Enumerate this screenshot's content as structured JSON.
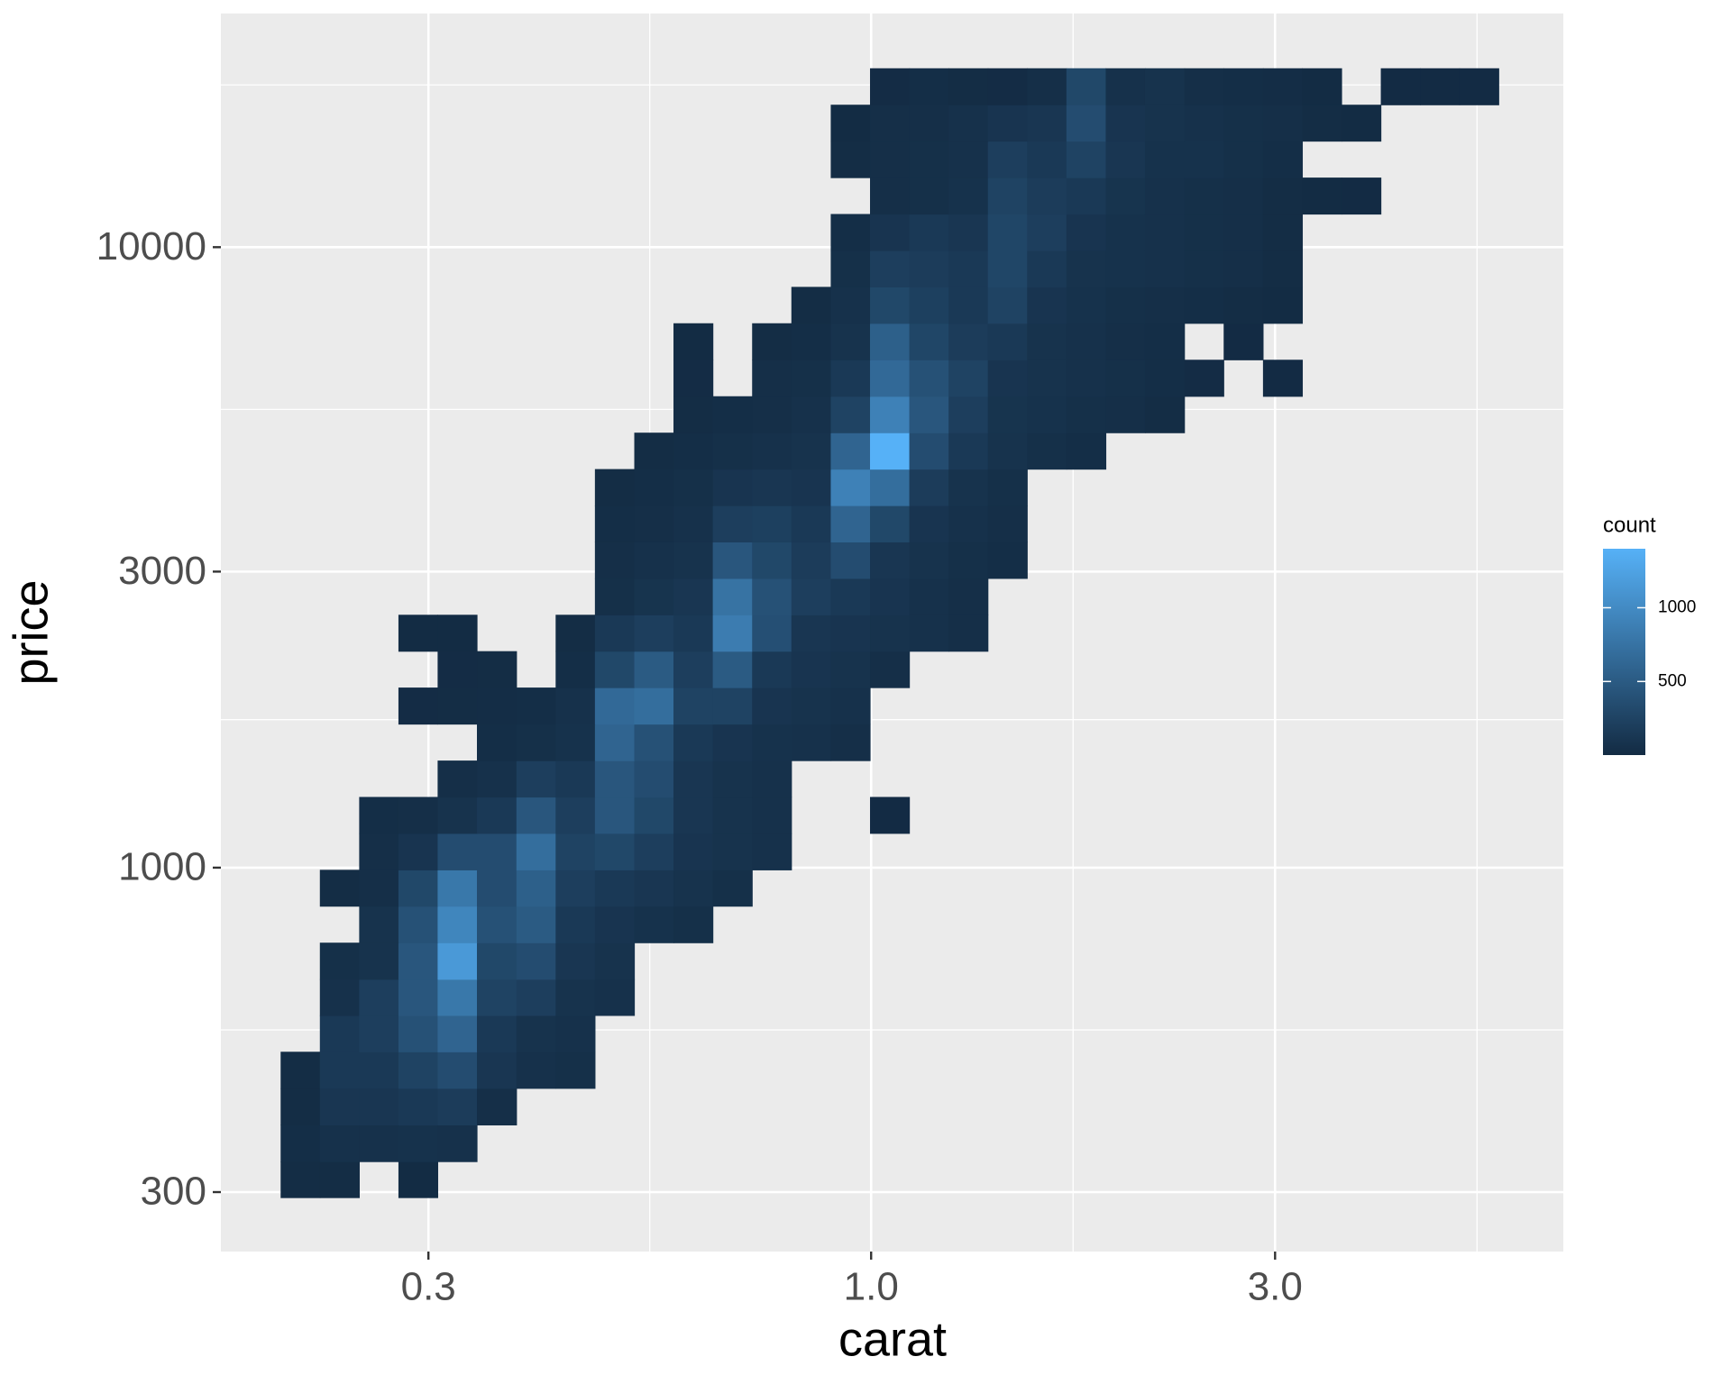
{
  "chart_data": {
    "type": "heatmap",
    "x_label": "carat",
    "y_label": "price",
    "legend_title": "count",
    "log_x": true,
    "log_y": true,
    "grid": true,
    "xlim": [
      0.1706,
      6.57
    ],
    "ylim": [
      240.6,
      23800
    ],
    "xticks": [
      0.3,
      {
        "value": 1,
        "label": "1.0"
      },
      {
        "value": 3,
        "label": "3.0"
      }
    ],
    "yticks": [
      300,
      1000,
      3000,
      10000
    ],
    "clim": [
      1,
      1400
    ],
    "cticks": [
      500,
      1000
    ],
    "low_color": "#132B43",
    "high_color": "#56B1F7",
    "legend_position": "right",
    "x_bins": [
      0.2007,
      0.2233,
      0.2485,
      0.2765,
      0.3076,
      0.3423,
      0.3811,
      0.424,
      0.4718,
      0.5251,
      0.5842,
      0.6501,
      0.7235,
      0.805,
      0.896,
      0.997,
      1.1094,
      1.2345,
      1.3736,
      1.5285,
      1.7008,
      1.8928,
      2.1059,
      2.3442,
      2.6085,
      2.903,
      3.23,
      3.594,
      3.9994,
      4.4505,
      4.952,
      5.5105
    ],
    "y_bins": [
      294,
      336,
      385,
      441,
      505,
      578,
      661,
      757,
      867,
      992,
      1136,
      1300,
      1488,
      1704,
      1951,
      2233,
      2556,
      2926,
      3350,
      3834,
      4389,
      5024,
      5751,
      6585,
      7540,
      8630,
      9878,
      11310,
      12947,
      14825,
      16966,
      19424
    ],
    "values": [
      [
        20,
        20,
        null,
        10,
        null,
        null,
        null,
        null,
        null,
        null,
        null,
        null,
        null,
        null,
        null,
        null,
        null,
        null,
        null,
        null,
        null,
        null,
        null,
        null,
        null,
        null,
        null,
        null,
        null,
        null,
        null
      ],
      [
        30,
        60,
        60,
        70,
        60,
        null,
        null,
        null,
        null,
        null,
        null,
        null,
        null,
        null,
        null,
        null,
        null,
        null,
        null,
        null,
        null,
        null,
        null,
        null,
        null,
        null,
        null,
        null,
        null,
        null,
        null
      ],
      [
        20,
        120,
        120,
        150,
        180,
        40,
        null,
        null,
        null,
        null,
        null,
        null,
        null,
        null,
        null,
        null,
        null,
        null,
        null,
        null,
        null,
        null,
        null,
        null,
        null,
        null,
        null,
        null,
        null,
        null,
        null
      ],
      [
        20,
        150,
        150,
        250,
        350,
        120,
        60,
        50,
        null,
        null,
        null,
        null,
        null,
        null,
        null,
        null,
        null,
        null,
        null,
        null,
        null,
        null,
        null,
        null,
        null,
        null,
        null,
        null,
        null,
        null,
        null
      ],
      [
        null,
        150,
        200,
        400,
        600,
        150,
        80,
        60,
        null,
        null,
        null,
        null,
        null,
        null,
        null,
        null,
        null,
        null,
        null,
        null,
        null,
        null,
        null,
        null,
        null,
        null,
        null,
        null,
        null,
        null,
        null
      ],
      [
        null,
        60,
        200,
        450,
        800,
        250,
        200,
        80,
        60,
        null,
        null,
        null,
        null,
        null,
        null,
        null,
        null,
        null,
        null,
        null,
        null,
        null,
        null,
        null,
        null,
        null,
        null,
        null,
        null,
        null,
        null
      ],
      [
        null,
        50,
        80,
        450,
        1150,
        300,
        350,
        120,
        80,
        null,
        null,
        null,
        null,
        null,
        null,
        null,
        null,
        null,
        null,
        null,
        null,
        null,
        null,
        null,
        null,
        null,
        null,
        null,
        null,
        null,
        null
      ],
      [
        null,
        null,
        80,
        400,
        950,
        400,
        500,
        150,
        100,
        70,
        50,
        null,
        null,
        null,
        null,
        null,
        null,
        null,
        null,
        null,
        null,
        null,
        null,
        null,
        null,
        null,
        null,
        null,
        null,
        null,
        null
      ],
      [
        null,
        20,
        40,
        300,
        800,
        350,
        550,
        200,
        150,
        120,
        80,
        50,
        null,
        null,
        null,
        null,
        null,
        null,
        null,
        null,
        null,
        null,
        null,
        null,
        null,
        null,
        null,
        null,
        null,
        null,
        null
      ],
      [
        null,
        null,
        40,
        100,
        350,
        350,
        700,
        250,
        300,
        200,
        100,
        80,
        60,
        null,
        null,
        null,
        null,
        null,
        null,
        null,
        null,
        null,
        null,
        null,
        null,
        null,
        null,
        null,
        null,
        null,
        null
      ],
      [
        null,
        null,
        30,
        40,
        80,
        150,
        450,
        200,
        450,
        300,
        120,
        80,
        60,
        null,
        null,
        5,
        null,
        null,
        null,
        null,
        null,
        null,
        null,
        null,
        null,
        null,
        null,
        null,
        null,
        null,
        null
      ],
      [
        null,
        null,
        null,
        null,
        40,
        60,
        200,
        150,
        450,
        350,
        120,
        80,
        60,
        null,
        null,
        null,
        null,
        null,
        null,
        null,
        null,
        null,
        null,
        null,
        null,
        null,
        null,
        null,
        null,
        null,
        null
      ],
      [
        null,
        null,
        null,
        null,
        null,
        30,
        50,
        70,
        600,
        400,
        150,
        100,
        70,
        60,
        40,
        null,
        null,
        null,
        null,
        null,
        null,
        null,
        null,
        null,
        null,
        null,
        null,
        null,
        null,
        null,
        null
      ],
      [
        null,
        null,
        null,
        15,
        20,
        25,
        30,
        60,
        650,
        700,
        250,
        250,
        100,
        80,
        60,
        null,
        null,
        null,
        null,
        null,
        null,
        null,
        null,
        null,
        null,
        null,
        null,
        null,
        null,
        null,
        null
      ],
      [
        null,
        null,
        null,
        null,
        15,
        20,
        null,
        30,
        300,
        500,
        200,
        500,
        150,
        100,
        80,
        40,
        null,
        null,
        null,
        null,
        null,
        null,
        null,
        null,
        null,
        null,
        null,
        null,
        null,
        null,
        null
      ],
      [
        null,
        null,
        null,
        10,
        10,
        null,
        null,
        20,
        150,
        200,
        150,
        850,
        380,
        120,
        100,
        80,
        60,
        40,
        null,
        null,
        null,
        null,
        null,
        null,
        null,
        null,
        null,
        null,
        null,
        null,
        null
      ],
      [
        null,
        null,
        null,
        null,
        null,
        null,
        null,
        null,
        50,
        90,
        120,
        750,
        400,
        200,
        150,
        100,
        60,
        40,
        null,
        null,
        null,
        null,
        null,
        null,
        null,
        null,
        null,
        null,
        null,
        null,
        null
      ],
      [
        null,
        null,
        null,
        null,
        null,
        null,
        null,
        null,
        40,
        60,
        80,
        450,
        300,
        180,
        350,
        120,
        80,
        50,
        30,
        null,
        null,
        null,
        null,
        null,
        null,
        null,
        null,
        null,
        null,
        null,
        null
      ],
      [
        null,
        null,
        null,
        null,
        null,
        null,
        null,
        null,
        30,
        40,
        60,
        200,
        220,
        150,
        600,
        300,
        100,
        60,
        40,
        null,
        null,
        null,
        null,
        null,
        null,
        null,
        null,
        null,
        null,
        null,
        null
      ],
      [
        null,
        null,
        null,
        null,
        null,
        null,
        null,
        null,
        20,
        30,
        50,
        100,
        120,
        100,
        900,
        700,
        180,
        80,
        50,
        null,
        null,
        null,
        null,
        null,
        null,
        null,
        null,
        null,
        null,
        null,
        null
      ],
      [
        null,
        null,
        null,
        null,
        null,
        null,
        null,
        null,
        null,
        20,
        30,
        50,
        60,
        80,
        600,
        1400,
        350,
        150,
        80,
        50,
        30,
        null,
        null,
        null,
        null,
        null,
        null,
        null,
        null,
        null,
        null
      ],
      [
        null,
        null,
        null,
        null,
        null,
        null,
        null,
        null,
        null,
        null,
        20,
        30,
        40,
        60,
        250,
        900,
        450,
        200,
        90,
        70,
        50,
        40,
        20,
        null,
        null,
        null,
        null,
        null,
        null,
        null,
        null
      ],
      [
        null,
        null,
        null,
        null,
        null,
        null,
        null,
        null,
        null,
        null,
        15,
        null,
        40,
        50,
        150,
        650,
        400,
        250,
        100,
        80,
        60,
        50,
        30,
        15,
        null,
        5,
        null,
        null,
        null,
        null,
        null
      ],
      [
        null,
        null,
        null,
        null,
        null,
        null,
        null,
        null,
        null,
        null,
        10,
        null,
        20,
        30,
        80,
        550,
        280,
        180,
        150,
        80,
        60,
        40,
        30,
        null,
        5,
        null,
        null,
        null,
        null,
        null,
        null
      ],
      [
        null,
        null,
        null,
        null,
        null,
        null,
        null,
        null,
        null,
        null,
        null,
        null,
        null,
        20,
        60,
        300,
        220,
        150,
        250,
        100,
        70,
        50,
        40,
        30,
        20,
        10,
        null,
        null,
        null,
        null,
        null
      ],
      [
        null,
        null,
        null,
        null,
        null,
        null,
        null,
        null,
        null,
        null,
        null,
        null,
        null,
        null,
        50,
        200,
        180,
        150,
        280,
        150,
        80,
        70,
        60,
        50,
        40,
        20,
        null,
        null,
        null,
        null,
        null
      ],
      [
        null,
        null,
        null,
        null,
        null,
        null,
        null,
        null,
        null,
        null,
        null,
        null,
        null,
        null,
        30,
        100,
        150,
        120,
        280,
        200,
        100,
        70,
        60,
        50,
        40,
        20,
        null,
        null,
        null,
        null,
        null
      ],
      [
        null,
        null,
        null,
        null,
        null,
        null,
        null,
        null,
        null,
        null,
        null,
        null,
        null,
        null,
        null,
        40,
        50,
        70,
        250,
        180,
        150,
        90,
        60,
        50,
        40,
        20,
        10,
        5,
        null,
        null,
        null
      ],
      [
        null,
        null,
        null,
        null,
        null,
        null,
        null,
        null,
        null,
        null,
        null,
        null,
        null,
        null,
        20,
        40,
        50,
        60,
        200,
        150,
        250,
        120,
        70,
        70,
        50,
        30,
        null,
        null,
        null,
        null,
        null
      ],
      [
        null,
        null,
        null,
        null,
        null,
        null,
        null,
        null,
        null,
        null,
        null,
        null,
        null,
        null,
        10,
        40,
        40,
        60,
        100,
        120,
        350,
        100,
        80,
        60,
        50,
        40,
        20,
        10,
        null,
        null,
        null
      ],
      [
        null,
        null,
        null,
        null,
        null,
        null,
        null,
        null,
        null,
        null,
        null,
        null,
        null,
        null,
        null,
        15,
        30,
        20,
        15,
        40,
        300,
        60,
        80,
        40,
        30,
        25,
        10,
        null,
        5,
        5,
        5
      ]
    ]
  }
}
